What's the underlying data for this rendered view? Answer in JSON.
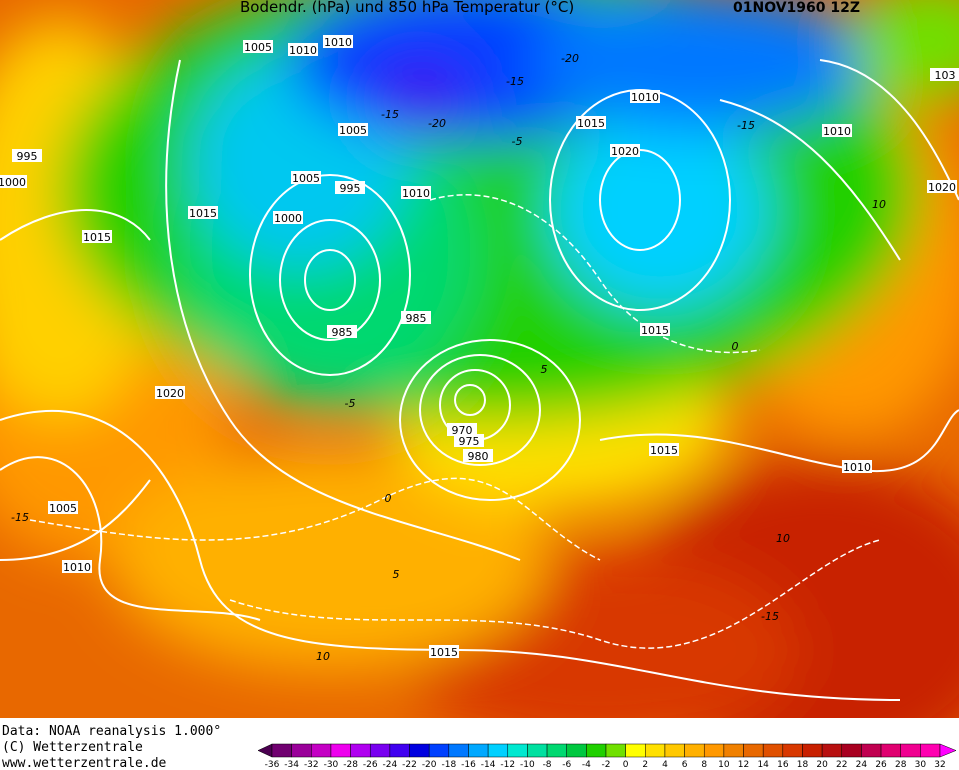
{
  "header": {
    "title": "Bodendr. (hPa) und 850 hPa Temperatur (°C)",
    "date": "01NOV1960 12Z"
  },
  "footer": {
    "source": "Data: NOAA reanalysis 1.000°",
    "copyright": "(C) Wetterzentrale",
    "url": "www.wetterzentrale.de"
  },
  "isobar_labels": [
    "1005",
    "1010",
    "1010",
    "1005",
    "995",
    "1000",
    "1015",
    "1005",
    "995",
    "1000",
    "1010",
    "1015",
    "985",
    "985",
    "1015",
    "1010",
    "1020",
    "1010",
    "1020",
    "1015",
    "1020",
    "970",
    "975",
    "980",
    "1015",
    "1010",
    "1005",
    "1010",
    "1015",
    "103"
  ],
  "temperature_labels": [
    "-15",
    "-15",
    "-20",
    "-5",
    "-15",
    "-20",
    "10",
    "0",
    "-5",
    "0",
    "5",
    "-15",
    "10",
    "10",
    "-15",
    "5"
  ],
  "colorbar": {
    "ticks": [
      -36,
      -34,
      -32,
      -30,
      -28,
      -26,
      -24,
      -22,
      -20,
      -18,
      -16,
      -14,
      -12,
      -10,
      -8,
      -6,
      -4,
      -2,
      0,
      2,
      4,
      6,
      8,
      10,
      12,
      14,
      16,
      18,
      20,
      22,
      24,
      26,
      28,
      30,
      32
    ],
    "colors": [
      "#4b0050",
      "#700070",
      "#9a009a",
      "#c400c4",
      "#ee00ee",
      "#b000f0",
      "#7800f0",
      "#4000f0",
      "#0000e0",
      "#0040ff",
      "#0078ff",
      "#00a8ff",
      "#00d0ff",
      "#00e8d0",
      "#00e0a0",
      "#00d870",
      "#00c840",
      "#20d000",
      "#70e000",
      "#ffff00",
      "#ffe000",
      "#ffc800",
      "#ffb000",
      "#ff9800",
      "#f08000",
      "#e86800",
      "#e05000",
      "#d83800",
      "#c82000",
      "#b81010",
      "#a80020",
      "#c00050",
      "#e00070",
      "#f00090",
      "#ff00b0",
      "#ff00ff"
    ]
  }
}
